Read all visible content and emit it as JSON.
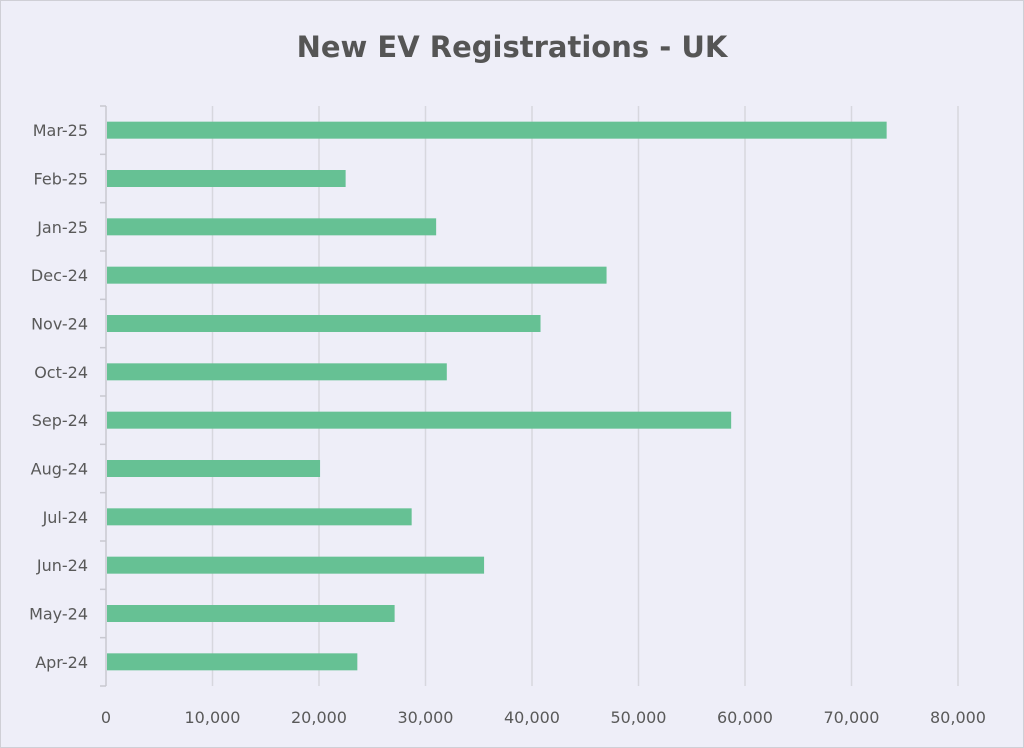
{
  "chart_data": {
    "type": "bar",
    "orientation": "horizontal",
    "title": "New EV Registrations - UK",
    "xlabel": "",
    "ylabel": "",
    "categories": [
      "Mar-25",
      "Feb-25",
      "Jan-25",
      "Dec-24",
      "Nov-24",
      "Oct-24",
      "Sep-24",
      "Aug-24",
      "Jul-24",
      "Jun-24",
      "May-24",
      "Apr-24"
    ],
    "values": [
      73300,
      22500,
      31000,
      47000,
      40800,
      32000,
      58700,
      20100,
      28700,
      35500,
      27100,
      23600
    ],
    "xlim": [
      0,
      80000
    ],
    "xticks": [
      0,
      10000,
      20000,
      30000,
      40000,
      50000,
      60000,
      70000,
      80000
    ],
    "xtick_labels": [
      "0",
      "10,000",
      "20,000",
      "30,000",
      "40,000",
      "50,000",
      "60,000",
      "70,000",
      "80,000"
    ],
    "grid": "vertical",
    "legend": "none",
    "bar_color": "#66c194",
    "grid_color": "#d7d7de",
    "axis_color": "#c8c8d0"
  }
}
